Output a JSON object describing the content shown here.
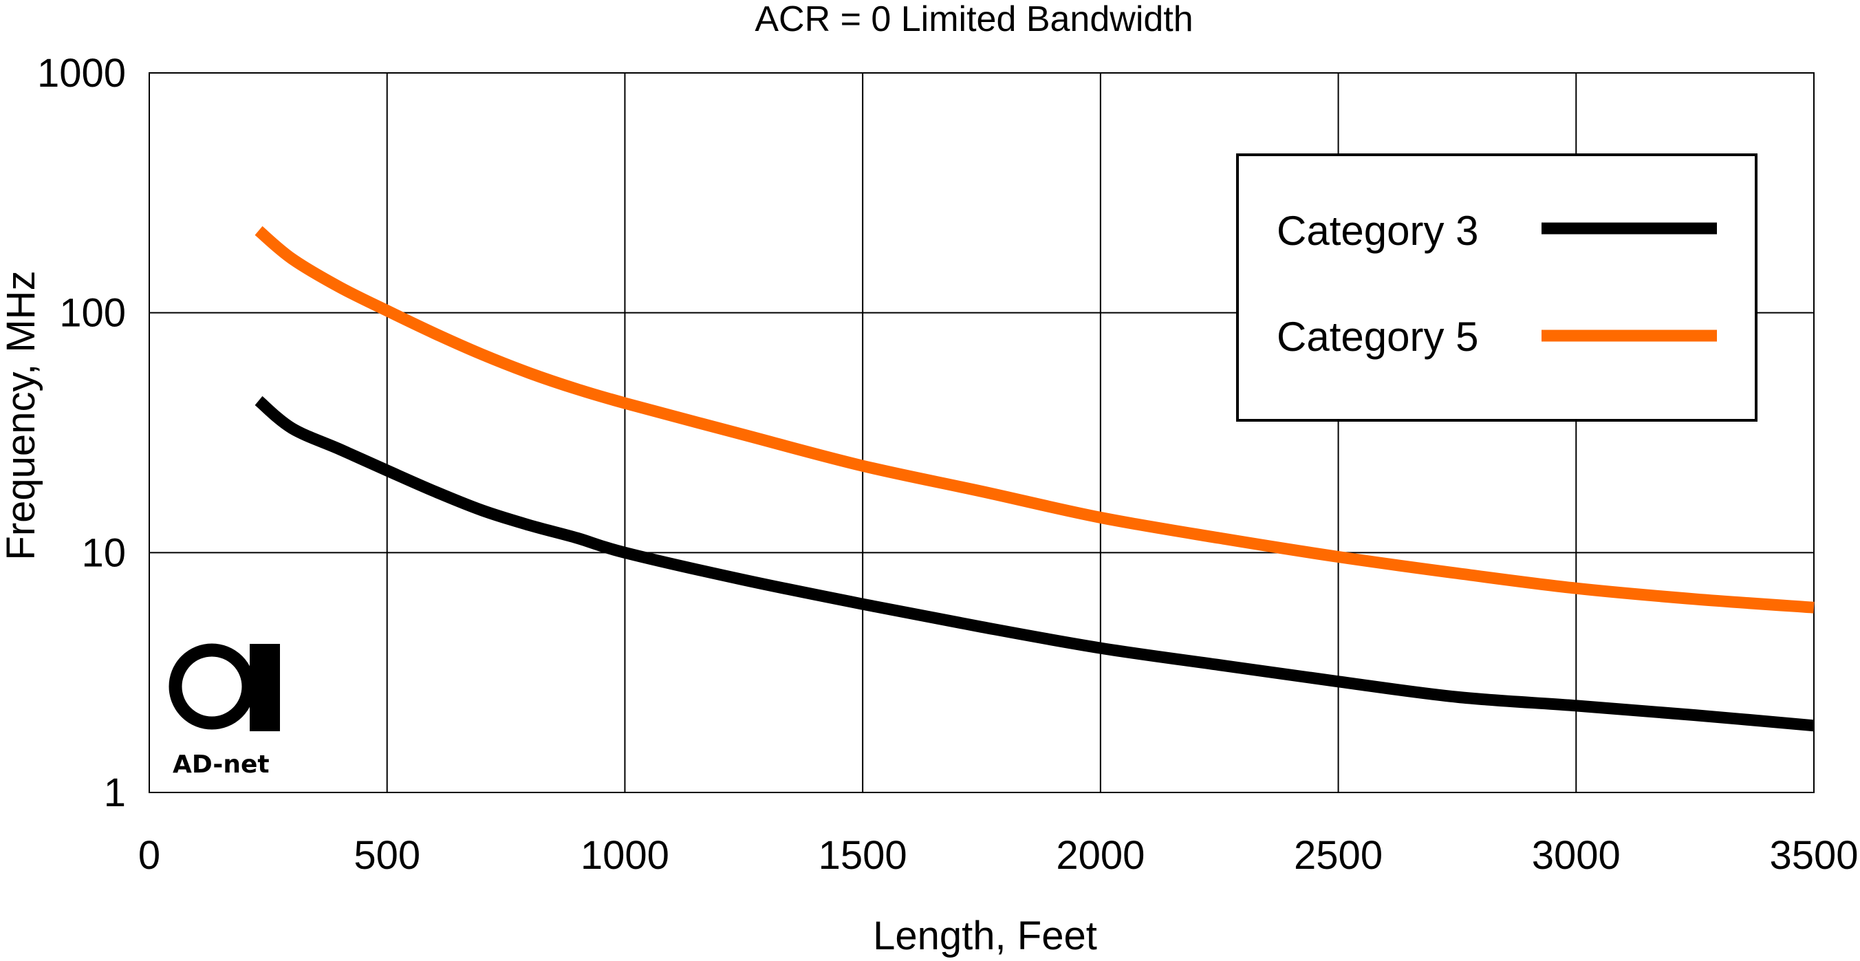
{
  "chart_data": {
    "type": "line",
    "title": "ACR = 0 Limited Bandwidth",
    "xlabel": "Length, Feet",
    "ylabel": "Frequency, MHz",
    "xlim": [
      0,
      3500
    ],
    "ylim": [
      1,
      1000
    ],
    "yscale": "log",
    "grid": true,
    "legend_position": "top-right",
    "x_ticks": [
      "0",
      "500",
      "1000",
      "1500",
      "2000",
      "2500",
      "3000",
      "3500"
    ],
    "y_ticks": [
      "1",
      "10",
      "100",
      "1000"
    ],
    "series": [
      {
        "name": "Category 3",
        "color": "#000000",
        "x": [
          230,
          300,
          400,
          500,
          600,
          700,
          800,
          900,
          1000,
          1250,
          1500,
          1750,
          2000,
          2250,
          2500,
          2750,
          3000,
          3250,
          3500
        ],
        "y": [
          43,
          33,
          27,
          22,
          18,
          15,
          13,
          11.5,
          10,
          7.7,
          6.1,
          4.9,
          4.0,
          3.4,
          2.9,
          2.5,
          2.3,
          2.1,
          1.9
        ]
      },
      {
        "name": "Category 5",
        "color": "#ff6a00",
        "x": [
          230,
          300,
          400,
          500,
          600,
          700,
          800,
          900,
          1000,
          1250,
          1500,
          1750,
          2000,
          2250,
          2500,
          2750,
          3000,
          3250,
          3500
        ],
        "y": [
          220,
          168,
          128,
          102,
          82,
          67,
          56,
          48,
          42,
          31,
          23,
          18,
          14,
          11.5,
          9.6,
          8.2,
          7.1,
          6.4,
          5.9
        ]
      }
    ]
  },
  "logo": {
    "text": "AD-net",
    "badge": "net",
    "accent_color": "#e87722"
  }
}
